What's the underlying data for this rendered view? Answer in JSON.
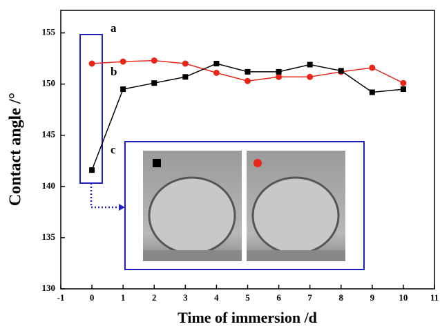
{
  "chart_data": {
    "type": "line",
    "x_label": "Time of immersion /d",
    "y_label": "Contact angle /°",
    "x": [
      0,
      1,
      2,
      3,
      4,
      5,
      6,
      7,
      8,
      9,
      10
    ],
    "series": [
      {
        "color": "#e8261a",
        "marker": "circle",
        "values": [
          152.0,
          152.2,
          152.3,
          152.0,
          151.1,
          150.3,
          150.7,
          150.7,
          151.2,
          151.6,
          150.1
        ]
      },
      {
        "color": "#000000",
        "marker": "square",
        "values": [
          141.6,
          149.5,
          150.1,
          150.7,
          152.0,
          151.2,
          151.2,
          151.9,
          151.3,
          149.2,
          149.5
        ]
      }
    ],
    "annotations": [
      "a",
      "b",
      "c"
    ],
    "xlim": [
      -1,
      11
    ],
    "xticks": [
      -1,
      0,
      1,
      2,
      3,
      4,
      5,
      6,
      7,
      8,
      9,
      10,
      11
    ],
    "ylim": [
      130,
      157.2
    ],
    "yticks": [
      130,
      135,
      140,
      145,
      150,
      155
    ],
    "grid": false
  }
}
